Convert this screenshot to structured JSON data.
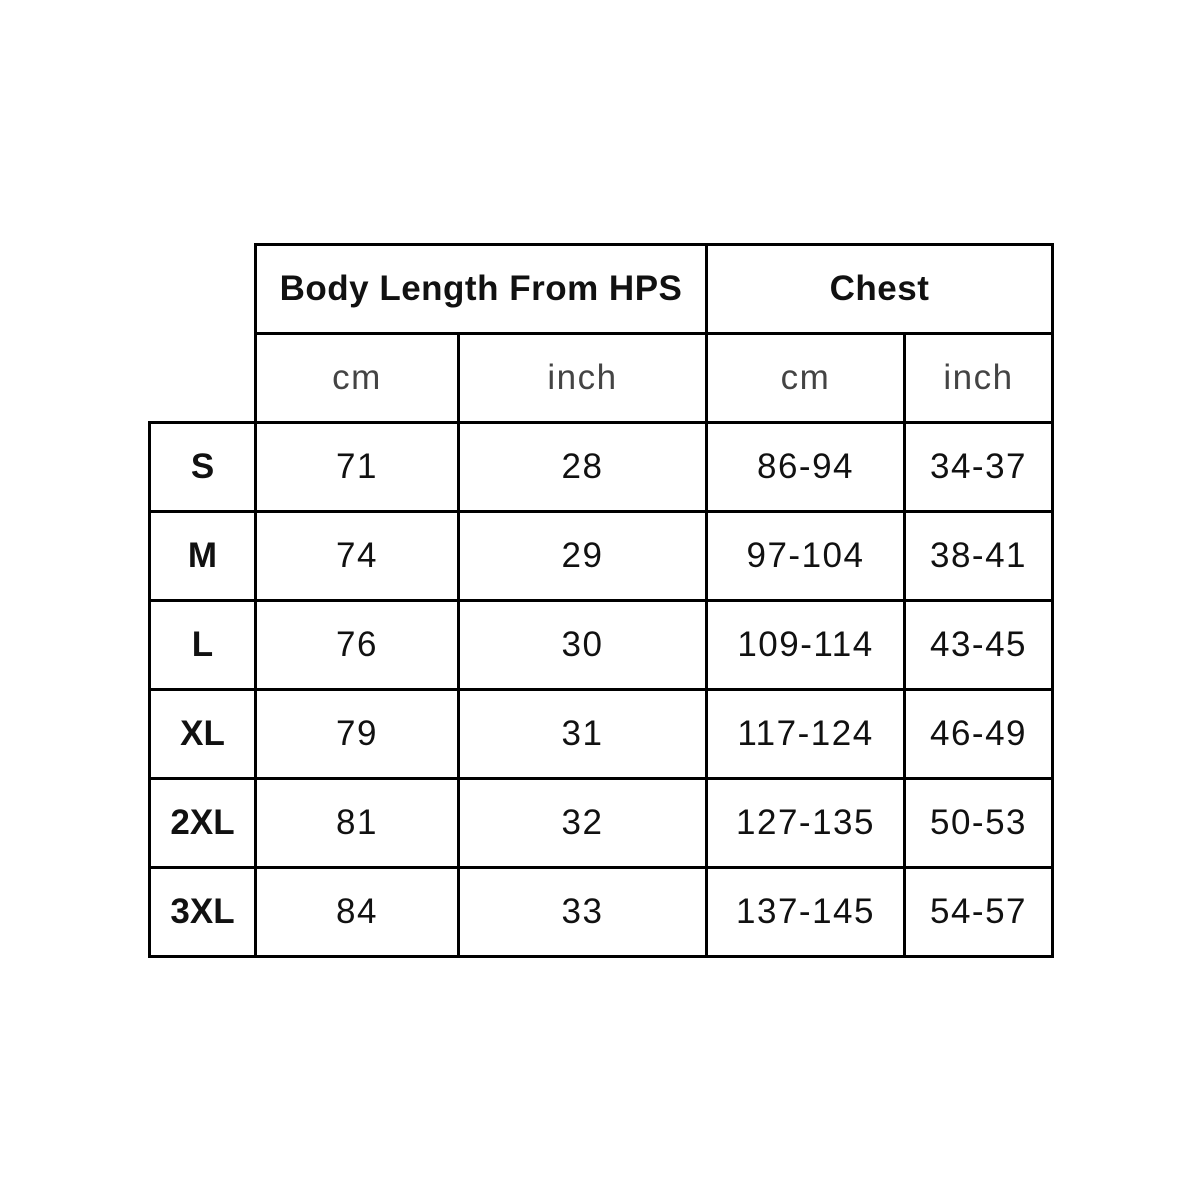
{
  "table": {
    "groups": [
      "Body Length From HPS",
      "Chest"
    ],
    "units": [
      "cm",
      "inch",
      "cm",
      "inch"
    ],
    "rows": [
      {
        "size": "S",
        "values": [
          "71",
          "28",
          "86-94",
          "34-37"
        ]
      },
      {
        "size": "M",
        "values": [
          "74",
          "29",
          "97-104",
          "38-41"
        ]
      },
      {
        "size": "L",
        "values": [
          "76",
          "30",
          "109-114",
          "43-45"
        ]
      },
      {
        "size": "XL",
        "values": [
          "79",
          "31",
          "117-124",
          "46-49"
        ]
      },
      {
        "size": "2XL",
        "values": [
          "81",
          "32",
          "127-135",
          "50-53"
        ]
      },
      {
        "size": "3XL",
        "values": [
          "84",
          "33",
          "137-145",
          "54-57"
        ]
      }
    ]
  }
}
